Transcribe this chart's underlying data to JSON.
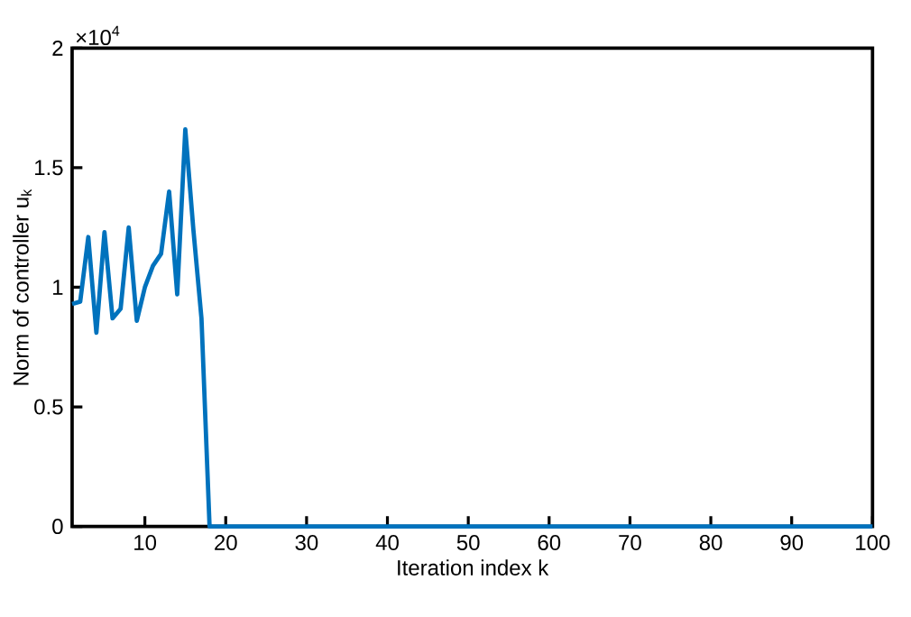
{
  "chart_data": {
    "type": "line",
    "xlabel": "Iteration index k",
    "ylabel": "Norm of controller u$_{k}$",
    "annotations": [
      "×10$^{4}$"
    ],
    "x": [
      1,
      2,
      3,
      4,
      5,
      6,
      7,
      8,
      9,
      10,
      11,
      12,
      13,
      14,
      15,
      16,
      17,
      18,
      100
    ],
    "series": [
      {
        "color": "#0072bd",
        "values": [
          0.93,
          0.94,
          1.21,
          0.81,
          1.23,
          0.87,
          0.91,
          1.25,
          0.86,
          1.0,
          1.09,
          1.14,
          1.4,
          0.97,
          1.66,
          1.24,
          0.87,
          0,
          0
        ]
      }
    ],
    "xlim": [
      1,
      100
    ],
    "xticks": [
      10,
      20,
      30,
      40,
      50,
      60,
      70,
      80,
      90,
      100
    ],
    "ylim": [
      0,
      2
    ],
    "yticks": [
      0,
      0.5,
      1,
      1.5,
      2
    ],
    "grid": false,
    "marker": "none",
    "line_style": "solid"
  }
}
